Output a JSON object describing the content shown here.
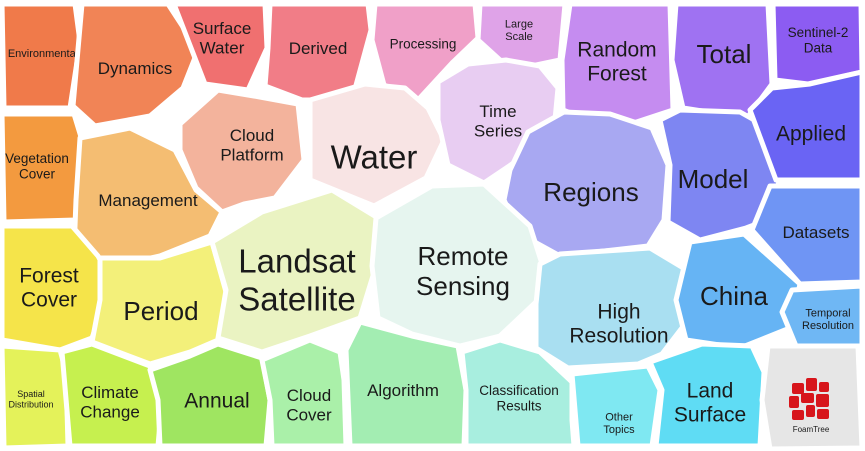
{
  "foamtree": {
    "groups": [
      {
        "id": "environmental",
        "lines": [
          "Environmental"
        ],
        "fill": "#f07a4a",
        "size": "xs"
      },
      {
        "id": "dynamics",
        "lines": [
          "Dynamics"
        ],
        "fill": "#f18456",
        "size": "m"
      },
      {
        "id": "surface-water",
        "lines": [
          "Surface",
          "Water"
        ],
        "fill": "#f07070",
        "size": "m"
      },
      {
        "id": "derived",
        "lines": [
          "Derived"
        ],
        "fill": "#f17d87",
        "size": "m"
      },
      {
        "id": "processing",
        "lines": [
          "Processing"
        ],
        "fill": "#f0a0c8",
        "size": "s"
      },
      {
        "id": "large-scale",
        "lines": [
          "Large",
          "Scale"
        ],
        "fill": "#dfa3e8",
        "size": "xs"
      },
      {
        "id": "random-forest",
        "lines": [
          "Random",
          "Forest"
        ],
        "fill": "#c58cf0",
        "size": "l"
      },
      {
        "id": "total",
        "lines": [
          "Total"
        ],
        "fill": "#9f72f2",
        "size": "xl"
      },
      {
        "id": "sentinel-2-data",
        "lines": [
          "Sentinel-2",
          "Data"
        ],
        "fill": "#8c5cf2",
        "size": "s"
      },
      {
        "id": "vegetation-cover",
        "lines": [
          "Vegetation",
          "Cover"
        ],
        "fill": "#f39a3f",
        "size": "s"
      },
      {
        "id": "cloud-platform",
        "lines": [
          "Cloud",
          "Platform"
        ],
        "fill": "#f3b39c",
        "size": "m"
      },
      {
        "id": "water",
        "lines": [
          "Water"
        ],
        "fill": "#f8e4e4",
        "size": "xxl"
      },
      {
        "id": "time-series",
        "lines": [
          "Time",
          "Series"
        ],
        "fill": "#e8cdf2",
        "size": "m"
      },
      {
        "id": "regions",
        "lines": [
          "Regions"
        ],
        "fill": "#a8a8f2",
        "size": "xl"
      },
      {
        "id": "model",
        "lines": [
          "Model"
        ],
        "fill": "#7e86f2",
        "size": "xl"
      },
      {
        "id": "applied",
        "lines": [
          "Applied"
        ],
        "fill": "#6a64f4",
        "size": "l"
      },
      {
        "id": "management",
        "lines": [
          "Management"
        ],
        "fill": "#f4bd72",
        "size": "m"
      },
      {
        "id": "datasets",
        "lines": [
          "Datasets"
        ],
        "fill": "#6f95f4",
        "size": "m"
      },
      {
        "id": "forest-cover",
        "lines": [
          "Forest",
          "Cover"
        ],
        "fill": "#f5e44a",
        "size": "l"
      },
      {
        "id": "period",
        "lines": [
          "Period"
        ],
        "fill": "#f3f07a",
        "size": "xl"
      },
      {
        "id": "landsat-satellite",
        "lines": [
          "Landsat",
          "Satellite"
        ],
        "fill": "#eaf3c2",
        "size": "xxl"
      },
      {
        "id": "remote-sensing",
        "lines": [
          "Remote",
          "Sensing"
        ],
        "fill": "#e6f5ef",
        "size": "xl"
      },
      {
        "id": "high-resolution",
        "lines": [
          "High",
          "Resolution"
        ],
        "fill": "#a9dff1",
        "size": "l"
      },
      {
        "id": "china",
        "lines": [
          "China"
        ],
        "fill": "#66b4f4",
        "size": "xl"
      },
      {
        "id": "temporal-resolution",
        "lines": [
          "Temporal",
          "Resolution"
        ],
        "fill": "#6fb7f4",
        "size": "xs"
      },
      {
        "id": "spatial-distribution",
        "lines": [
          "Spatial",
          "Distribution"
        ],
        "fill": "#e4f25a",
        "size": "xxs"
      },
      {
        "id": "climate-change",
        "lines": [
          "Climate",
          "Change"
        ],
        "fill": "#c6f04f",
        "size": "m"
      },
      {
        "id": "annual",
        "lines": [
          "Annual"
        ],
        "fill": "#9fe561",
        "size": "l"
      },
      {
        "id": "cloud-cover",
        "lines": [
          "Cloud",
          "Cover"
        ],
        "fill": "#aaf0a9",
        "size": "m"
      },
      {
        "id": "algorithm",
        "lines": [
          "Algorithm"
        ],
        "fill": "#a3edb2",
        "size": "m"
      },
      {
        "id": "classification-results",
        "lines": [
          "Classification",
          "Results"
        ],
        "fill": "#a8eedf",
        "size": "s"
      },
      {
        "id": "other-topics",
        "lines": [
          "Other",
          "Topics"
        ],
        "fill": "#7fe8f2",
        "size": "xs"
      },
      {
        "id": "land-surface",
        "lines": [
          "Land",
          "Surface"
        ],
        "fill": "#5fdcf4",
        "size": "l"
      }
    ],
    "brand": {
      "label": "FoamTree",
      "tile_fill": "#e6e6e6",
      "logo_fill": "#d7151b"
    }
  }
}
